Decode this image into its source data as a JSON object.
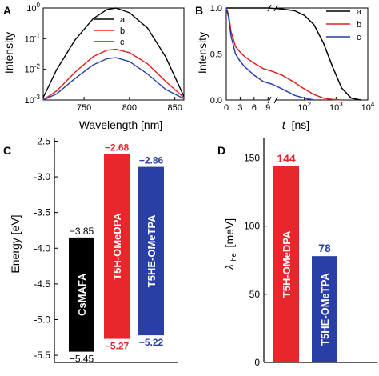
{
  "panels": [
    "A",
    "B",
    "C",
    "D"
  ],
  "chart_data": [
    {
      "id": "A",
      "type": "line",
      "xlabel": "Wavelength [nm]",
      "ylabel": "Intensity",
      "x_scale": "linear",
      "y_scale": "log",
      "xlim": [
        705,
        860
      ],
      "ylim": [
        0.001,
        1
      ],
      "x_ticks": [
        "750",
        "800",
        "850"
      ],
      "y_ticks": [
        "10",
        "10",
        "10",
        "10"
      ],
      "y_tick_exponents": [
        "0",
        "-1",
        "-2",
        "-3"
      ],
      "legend_position": "top-right",
      "series": [
        {
          "name": "a",
          "color": "#000000",
          "x": [
            705,
            720,
            740,
            760,
            775,
            785,
            800,
            820,
            840,
            860
          ],
          "y": [
            0.0012,
            0.01,
            0.09,
            0.45,
            0.88,
            1.0,
            0.7,
            0.22,
            0.025,
            0.0013
          ]
        },
        {
          "name": "b",
          "color": "#e02020",
          "x": [
            705,
            720,
            740,
            760,
            775,
            785,
            800,
            820,
            840,
            860
          ],
          "y": [
            0.001,
            0.002,
            0.008,
            0.026,
            0.042,
            0.045,
            0.035,
            0.015,
            0.004,
            0.0012
          ]
        },
        {
          "name": "c",
          "color": "#2a3fa5",
          "x": [
            705,
            720,
            740,
            760,
            775,
            785,
            800,
            820,
            840,
            860
          ],
          "y": [
            0.001,
            0.0016,
            0.005,
            0.014,
            0.022,
            0.024,
            0.018,
            0.007,
            0.0022,
            0.0011
          ]
        }
      ]
    },
    {
      "id": "B",
      "type": "line",
      "xlabel_italic": "t",
      "xlabel_unit": "[ns]",
      "ylabel": "Intensity",
      "ylim": [
        0,
        1.0
      ],
      "y_ticks": [
        "0.0",
        "0.5",
        "1.0"
      ],
      "x_linear_segment": {
        "range": [
          0,
          10
        ],
        "ticks": [
          "0",
          "3",
          "6",
          "9"
        ]
      },
      "x_log_segment": {
        "range": [
          10,
          10000
        ],
        "tick_base": "10",
        "tick_exponents": [
          "2",
          "3",
          "4"
        ]
      },
      "legend_position": "top-right",
      "series": [
        {
          "name": "a",
          "color": "#000000",
          "x": [
            0,
            3,
            6,
            9,
            20,
            50,
            100,
            200,
            400,
            800,
            1500,
            3000,
            6000
          ],
          "y": [
            1.0,
            1.0,
            1.0,
            1.0,
            0.99,
            0.97,
            0.92,
            0.82,
            0.62,
            0.35,
            0.13,
            0.02,
            0.0
          ]
        },
        {
          "name": "b",
          "color": "#e02020",
          "x": [
            0,
            0.5,
            1,
            2,
            3,
            4,
            6,
            8,
            10,
            20,
            50,
            100,
            200,
            400,
            800,
            1500
          ],
          "y": [
            1.0,
            0.93,
            0.75,
            0.58,
            0.52,
            0.47,
            0.4,
            0.34,
            0.31,
            0.27,
            0.19,
            0.12,
            0.06,
            0.02,
            0.005,
            0.0
          ]
        },
        {
          "name": "c",
          "color": "#2a3fa5",
          "x": [
            0,
            0.5,
            1,
            2,
            3,
            4,
            6,
            8,
            10,
            20,
            50,
            100,
            200
          ],
          "y": [
            1.0,
            0.9,
            0.7,
            0.5,
            0.42,
            0.36,
            0.27,
            0.2,
            0.17,
            0.12,
            0.05,
            0.02,
            0.0
          ]
        }
      ]
    },
    {
      "id": "C",
      "type": "bar",
      "ylabel": "Energy [eV]",
      "ylim": [
        -5.6,
        -2.45
      ],
      "y_ticks": [
        "-2.5",
        "-3.0",
        "-3.5",
        "-4.0",
        "-4.5",
        "-5.0",
        "-5.5"
      ],
      "bars": [
        {
          "name": "CsMAFA",
          "top": -3.85,
          "bottom": -5.45,
          "top_label": "−3.85",
          "bottom_label": "−5.45",
          "color": "#000000",
          "label_color": "#000000"
        },
        {
          "name": "T5H-OMeDPA",
          "top": -2.68,
          "bottom": -5.27,
          "top_label": "−2.68",
          "bottom_label": "−5.27",
          "color": "#e8262c",
          "label_color": "#e8262c"
        },
        {
          "name": "T5HE-OMeTPA",
          "top": -2.86,
          "bottom": -5.22,
          "top_label": "−2.86",
          "bottom_label": "−5.22",
          "color": "#2a3fa5",
          "label_color": "#2a3fa5"
        }
      ]
    },
    {
      "id": "D",
      "type": "bar",
      "ylabel_symbol": "λ",
      "ylabel_subscript": "he",
      "ylabel_unit": "[meV]",
      "ylim": [
        0,
        165
      ],
      "y_ticks": [
        "0",
        "50",
        "100",
        "150"
      ],
      "bars": [
        {
          "name": "T5H-OMeDPA",
          "value": 144,
          "label": "144",
          "color": "#e8262c"
        },
        {
          "name": "T5HE-OMeTPA",
          "value": 78,
          "label": "78",
          "color": "#2a3fa5"
        }
      ]
    }
  ]
}
